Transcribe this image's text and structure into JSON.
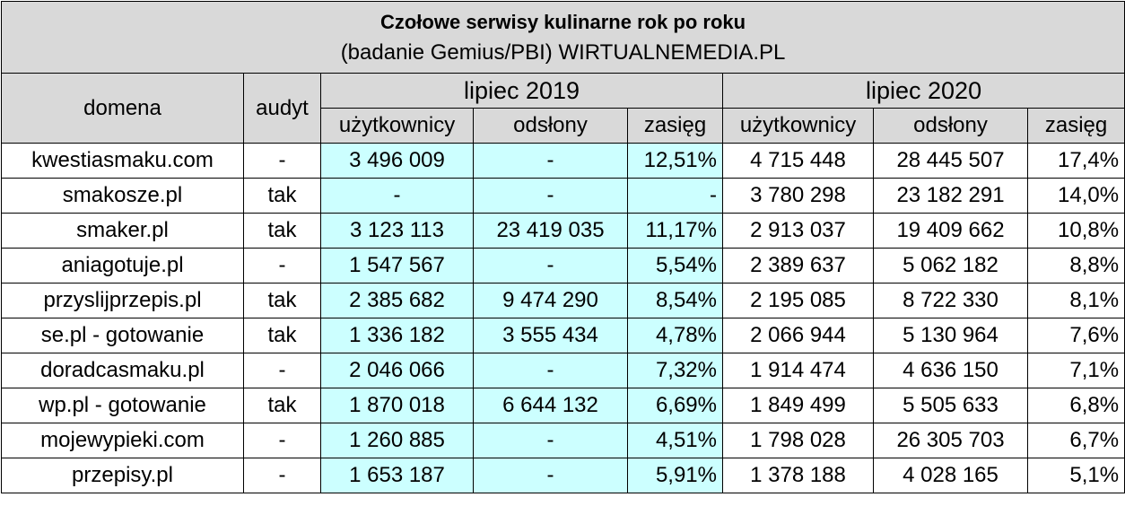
{
  "title": "Czołowe serwisy kulinarne rok po roku",
  "subtitle": "(badanie Gemius/PBI) WIRTUALNEMEDIA.PL",
  "headers": {
    "domena": "domena",
    "audyt": "audyt",
    "period1": "lipiec 2019",
    "period2": "lipiec 2020",
    "users": "użytkownicy",
    "views": "odsłony",
    "reach": "zasięg"
  },
  "rows": [
    {
      "domain": "kwestiasmaku.com",
      "audit": "-",
      "u2019": "3 496 009",
      "v2019": "-",
      "r2019": "12,51%",
      "u2020": "4 715 448",
      "v2020": "28 445 507",
      "r2020": "17,4%"
    },
    {
      "domain": "smakosze.pl",
      "audit": "tak",
      "u2019": "-",
      "v2019": "-",
      "r2019": "-",
      "u2020": "3 780 298",
      "v2020": "23 182 291",
      "r2020": "14,0%"
    },
    {
      "domain": "smaker.pl",
      "audit": "tak",
      "u2019": "3 123 113",
      "v2019": "23 419 035",
      "r2019": "11,17%",
      "u2020": "2 913 037",
      "v2020": "19 409 662",
      "r2020": "10,8%"
    },
    {
      "domain": "aniagotuje.pl",
      "audit": "-",
      "u2019": "1 547 567",
      "v2019": "-",
      "r2019": "5,54%",
      "u2020": "2 389 637",
      "v2020": "5 062 182",
      "r2020": "8,8%"
    },
    {
      "domain": "przyslijprzepis.pl",
      "audit": "tak",
      "u2019": "2 385 682",
      "v2019": "9 474 290",
      "r2019": "8,54%",
      "u2020": "2 195 085",
      "v2020": "8 722 330",
      "r2020": "8,1%"
    },
    {
      "domain": "se.pl - gotowanie",
      "audit": "tak",
      "u2019": "1 336 182",
      "v2019": "3 555 434",
      "r2019": "4,78%",
      "u2020": "2 066 944",
      "v2020": "5 130 964",
      "r2020": "7,6%"
    },
    {
      "domain": "doradcasmaku.pl",
      "audit": "-",
      "u2019": "2 046 066",
      "v2019": "-",
      "r2019": "7,32%",
      "u2020": "1 914 474",
      "v2020": "4 636 150",
      "r2020": "7,1%"
    },
    {
      "domain": "wp.pl - gotowanie",
      "audit": "tak",
      "u2019": "1 870 018",
      "v2019": "6 644 132",
      "r2019": "6,69%",
      "u2020": "1 849 499",
      "v2020": "5 505 633",
      "r2020": "6,8%"
    },
    {
      "domain": "mojewypieki.com",
      "audit": "-",
      "u2019": "1 260 885",
      "v2019": "-",
      "r2019": "4,51%",
      "u2020": "1 798 028",
      "v2020": "26 305 703",
      "r2020": "6,7%"
    },
    {
      "domain": "przepisy.pl",
      "audit": "-",
      "u2019": "1 653 187",
      "v2019": "-",
      "r2019": "5,91%",
      "u2020": "1 378 188",
      "v2020": "4 028 165",
      "r2020": "5,1%"
    }
  ]
}
